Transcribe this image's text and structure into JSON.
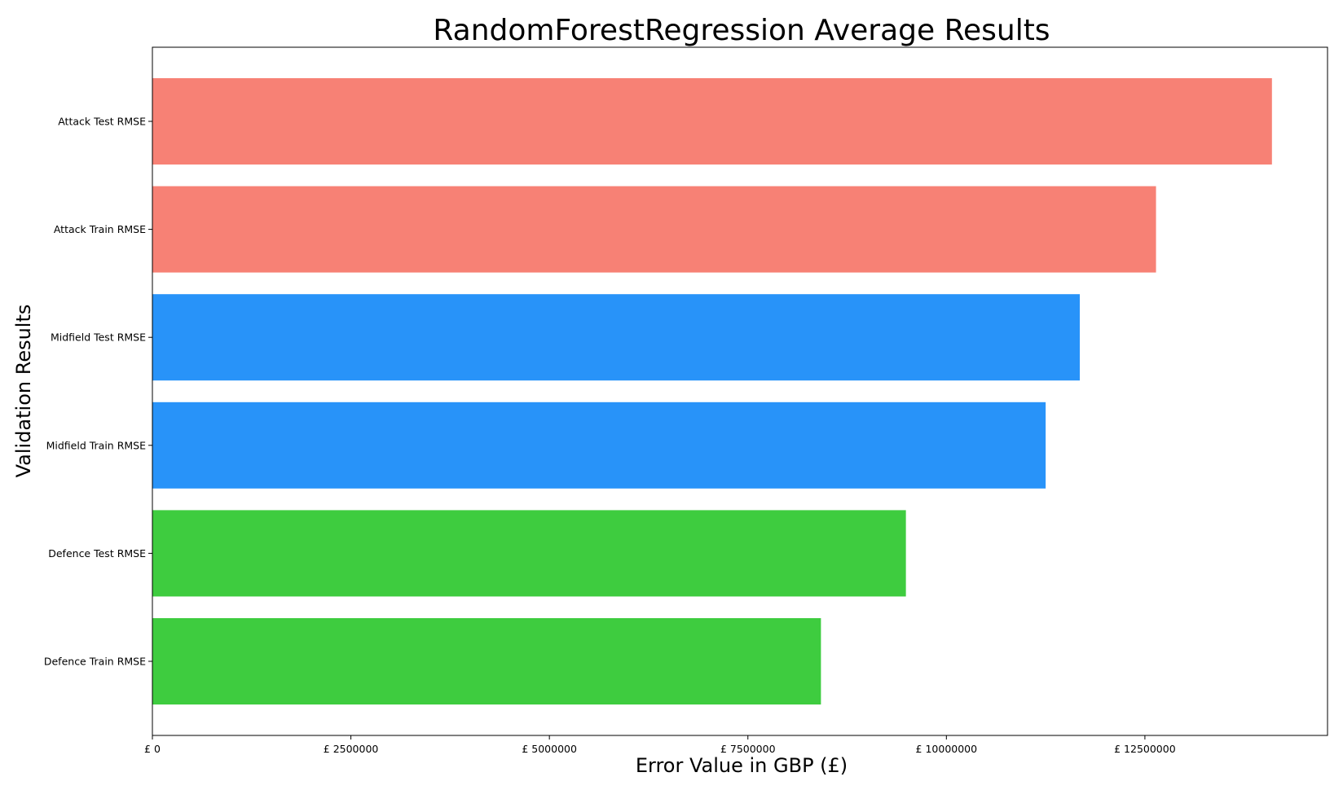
{
  "chart_data": {
    "type": "bar",
    "orientation": "horizontal",
    "title": "RandomForestRegression Average Results",
    "xlabel": "Error Value in GBP (£)",
    "ylabel": "Validation Results",
    "xlim": [
      0,
      14800000
    ],
    "x_ticks": [
      {
        "value": 0,
        "label": "£ 0"
      },
      {
        "value": 2500000,
        "label": "£ 2500000"
      },
      {
        "value": 5000000,
        "label": "£ 5000000"
      },
      {
        "value": 7500000,
        "label": "£ 7500000"
      },
      {
        "value": 10000000,
        "label": "£ 10000000"
      },
      {
        "value": 12500000,
        "label": "£ 12500000"
      }
    ],
    "grid": false,
    "legend": "none",
    "categories": [
      "Attack Test RMSE",
      "Attack Train RMSE",
      "Midfield Test RMSE",
      "Midfield Train RMSE",
      "Defence Test RMSE",
      "Defence Train RMSE"
    ],
    "values": [
      14100000,
      12640000,
      11680000,
      11250000,
      9490000,
      8420000
    ],
    "colors": [
      "#f78175",
      "#f78175",
      "#2893f9",
      "#2893f9",
      "#3ecc3f",
      "#3ecc3f"
    ]
  }
}
